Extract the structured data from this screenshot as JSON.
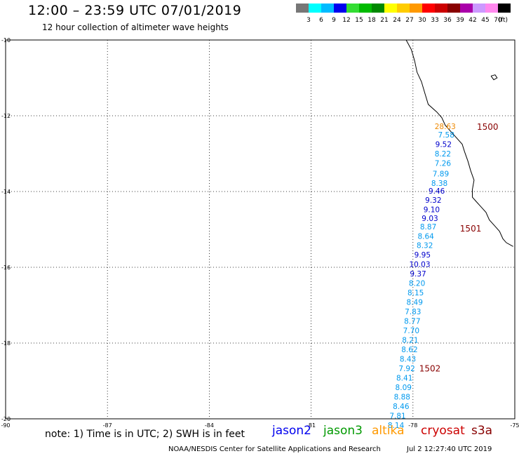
{
  "title": "12:00 – 23:59 UTC 07/01/2019",
  "subtitle": "12 hour collection of altimeter wave heights",
  "colorbar": {
    "unit_label": "(ft)",
    "bins": [
      {
        "color": "#777777",
        "label": "3"
      },
      {
        "color": "#00ffff",
        "label": "6"
      },
      {
        "color": "#00bbff",
        "label": "9"
      },
      {
        "color": "#0000ee",
        "label": "12"
      },
      {
        "color": "#33dd33",
        "label": "15"
      },
      {
        "color": "#00bb00",
        "label": "18"
      },
      {
        "color": "#008800",
        "label": "21"
      },
      {
        "color": "#ffff00",
        "label": "24"
      },
      {
        "color": "#ffcc00",
        "label": "27"
      },
      {
        "color": "#ff9900",
        "label": "30"
      },
      {
        "color": "#ff0000",
        "label": "33"
      },
      {
        "color": "#cc0000",
        "label": "36"
      },
      {
        "color": "#880000",
        "label": "39"
      },
      {
        "color": "#aa00aa",
        "label": "42"
      },
      {
        "color": "#cc99ff",
        "label": "45"
      },
      {
        "color": "#ff88ee",
        "label": "70"
      },
      {
        "color": "#000000",
        "label": ""
      }
    ]
  },
  "axes": {
    "lat_ticks": [
      "-10",
      "-12",
      "-14",
      "-16",
      "-18",
      "-20"
    ],
    "lon_ticks": [
      "-90",
      "-87",
      "-84",
      "-81",
      "-78",
      "-75"
    ]
  },
  "observations": [
    {
      "lat": -12.28,
      "lon": -77.05,
      "value": "28.63",
      "color": "#ee8800"
    },
    {
      "lat": -12.5,
      "lon": -77.02,
      "value": "7.58",
      "color": "#0099ee"
    },
    {
      "lat": -12.75,
      "lon": -77.1,
      "value": "9.52",
      "color": "#0000cc"
    },
    {
      "lat": -13.0,
      "lon": -77.12,
      "value": "8.22",
      "color": "#0099ee"
    },
    {
      "lat": -13.25,
      "lon": -77.12,
      "value": "7.26",
      "color": "#0099ee"
    },
    {
      "lat": -13.53,
      "lon": -77.18,
      "value": "7.89",
      "color": "#0099ee"
    },
    {
      "lat": -13.78,
      "lon": -77.22,
      "value": "8.38",
      "color": "#0099ee"
    },
    {
      "lat": -13.98,
      "lon": -77.3,
      "value": "9.46",
      "color": "#0000cc"
    },
    {
      "lat": -14.22,
      "lon": -77.4,
      "value": "9.32",
      "color": "#0000cc"
    },
    {
      "lat": -14.47,
      "lon": -77.45,
      "value": "9.10",
      "color": "#0000cc"
    },
    {
      "lat": -14.7,
      "lon": -77.5,
      "value": "9.03",
      "color": "#0000cc"
    },
    {
      "lat": -14.93,
      "lon": -77.55,
      "value": "8.87",
      "color": "#0099ee"
    },
    {
      "lat": -15.18,
      "lon": -77.62,
      "value": "8.64",
      "color": "#0099ee"
    },
    {
      "lat": -15.42,
      "lon": -77.65,
      "value": "8.32",
      "color": "#0099ee"
    },
    {
      "lat": -15.67,
      "lon": -77.72,
      "value": "9.95",
      "color": "#0000cc"
    },
    {
      "lat": -15.92,
      "lon": -77.8,
      "value": "10.03",
      "color": "#0000cc"
    },
    {
      "lat": -16.17,
      "lon": -77.85,
      "value": "9.37",
      "color": "#0000cc"
    },
    {
      "lat": -16.42,
      "lon": -77.88,
      "value": "8.20",
      "color": "#0099ee"
    },
    {
      "lat": -16.67,
      "lon": -77.92,
      "value": "8.15",
      "color": "#0099ee"
    },
    {
      "lat": -16.92,
      "lon": -77.95,
      "value": "8.49",
      "color": "#0099ee"
    },
    {
      "lat": -17.17,
      "lon": -78.0,
      "value": "7.83",
      "color": "#0099ee"
    },
    {
      "lat": -17.42,
      "lon": -78.02,
      "value": "8.77",
      "color": "#0099ee"
    },
    {
      "lat": -17.67,
      "lon": -78.05,
      "value": "7.70",
      "color": "#0099ee"
    },
    {
      "lat": -17.92,
      "lon": -78.08,
      "value": "8.21",
      "color": "#0099ee"
    },
    {
      "lat": -18.17,
      "lon": -78.1,
      "value": "8.62",
      "color": "#0099ee"
    },
    {
      "lat": -18.42,
      "lon": -78.15,
      "value": "8.43",
      "color": "#0099ee"
    },
    {
      "lat": -18.67,
      "lon": -78.18,
      "value": "7.92",
      "color": "#0099ee"
    },
    {
      "lat": -18.92,
      "lon": -78.25,
      "value": "8.41",
      "color": "#0099ee"
    },
    {
      "lat": -19.17,
      "lon": -78.28,
      "value": "8.09",
      "color": "#0099ee"
    },
    {
      "lat": -19.42,
      "lon": -78.32,
      "value": "8.88",
      "color": "#0099ee"
    },
    {
      "lat": -19.67,
      "lon": -78.35,
      "value": "8.46",
      "color": "#0099ee"
    },
    {
      "lat": -19.92,
      "lon": -78.45,
      "value": "7.81",
      "color": "#0099ee"
    },
    {
      "lat": -20.17,
      "lon": -78.5,
      "value": "8.14",
      "color": "#0099ee"
    }
  ],
  "cycle_markers": [
    {
      "lat": -12.3,
      "lon": -75.8,
      "value": "1500",
      "color": "#880000"
    },
    {
      "lat": -14.98,
      "lon": -76.3,
      "value": "1501",
      "color": "#880000"
    },
    {
      "lat": -18.68,
      "lon": -77.5,
      "value": "1502",
      "color": "#880000"
    }
  ],
  "coastline": [
    [
      -78.2,
      -10.0
    ],
    [
      -78.05,
      -10.25
    ],
    [
      -77.95,
      -10.55
    ],
    [
      -77.88,
      -10.85
    ],
    [
      -77.75,
      -11.1
    ],
    [
      -77.65,
      -11.4
    ],
    [
      -77.55,
      -11.7
    ],
    [
      -77.3,
      -11.9
    ],
    [
      -77.15,
      -12.05
    ],
    [
      -77.05,
      -12.25
    ],
    [
      -76.9,
      -12.4
    ],
    [
      -76.75,
      -12.55
    ],
    [
      -76.55,
      -12.75
    ],
    [
      -76.48,
      -12.95
    ],
    [
      -76.38,
      -13.2
    ],
    [
      -76.3,
      -13.45
    ],
    [
      -76.2,
      -13.7
    ],
    [
      -76.25,
      -13.95
    ],
    [
      -76.25,
      -14.15
    ],
    [
      -76.15,
      -14.25
    ],
    [
      -76.0,
      -14.4
    ],
    [
      -75.85,
      -14.55
    ],
    [
      -75.75,
      -14.75
    ],
    [
      -75.6,
      -14.9
    ],
    [
      -75.45,
      -15.05
    ],
    [
      -75.35,
      -15.25
    ],
    [
      -75.25,
      -15.35
    ],
    [
      -75.05,
      -15.45
    ]
  ],
  "island": [
    [
      -75.7,
      -10.95
    ],
    [
      -75.58,
      -10.92
    ],
    [
      -75.52,
      -11.0
    ],
    [
      -75.62,
      -11.05
    ],
    [
      -75.7,
      -10.95
    ]
  ],
  "footer": {
    "note": "note: 1) Time is in UTC; 2) SWH is in feet",
    "satellites": [
      {
        "name": "jason2",
        "color": "#0000ee"
      },
      {
        "name": "jason3",
        "color": "#009900"
      },
      {
        "name": "altika",
        "color": "#ff9900"
      },
      {
        "name": "cryosat",
        "color": "#cc0000"
      },
      {
        "name": "s3a",
        "color": "#880000"
      }
    ],
    "credit": "NOAA/NESDIS Center for Satellite Applications and Research",
    "timestamp": "Jul  2 12:27:40 UTC 2019"
  }
}
